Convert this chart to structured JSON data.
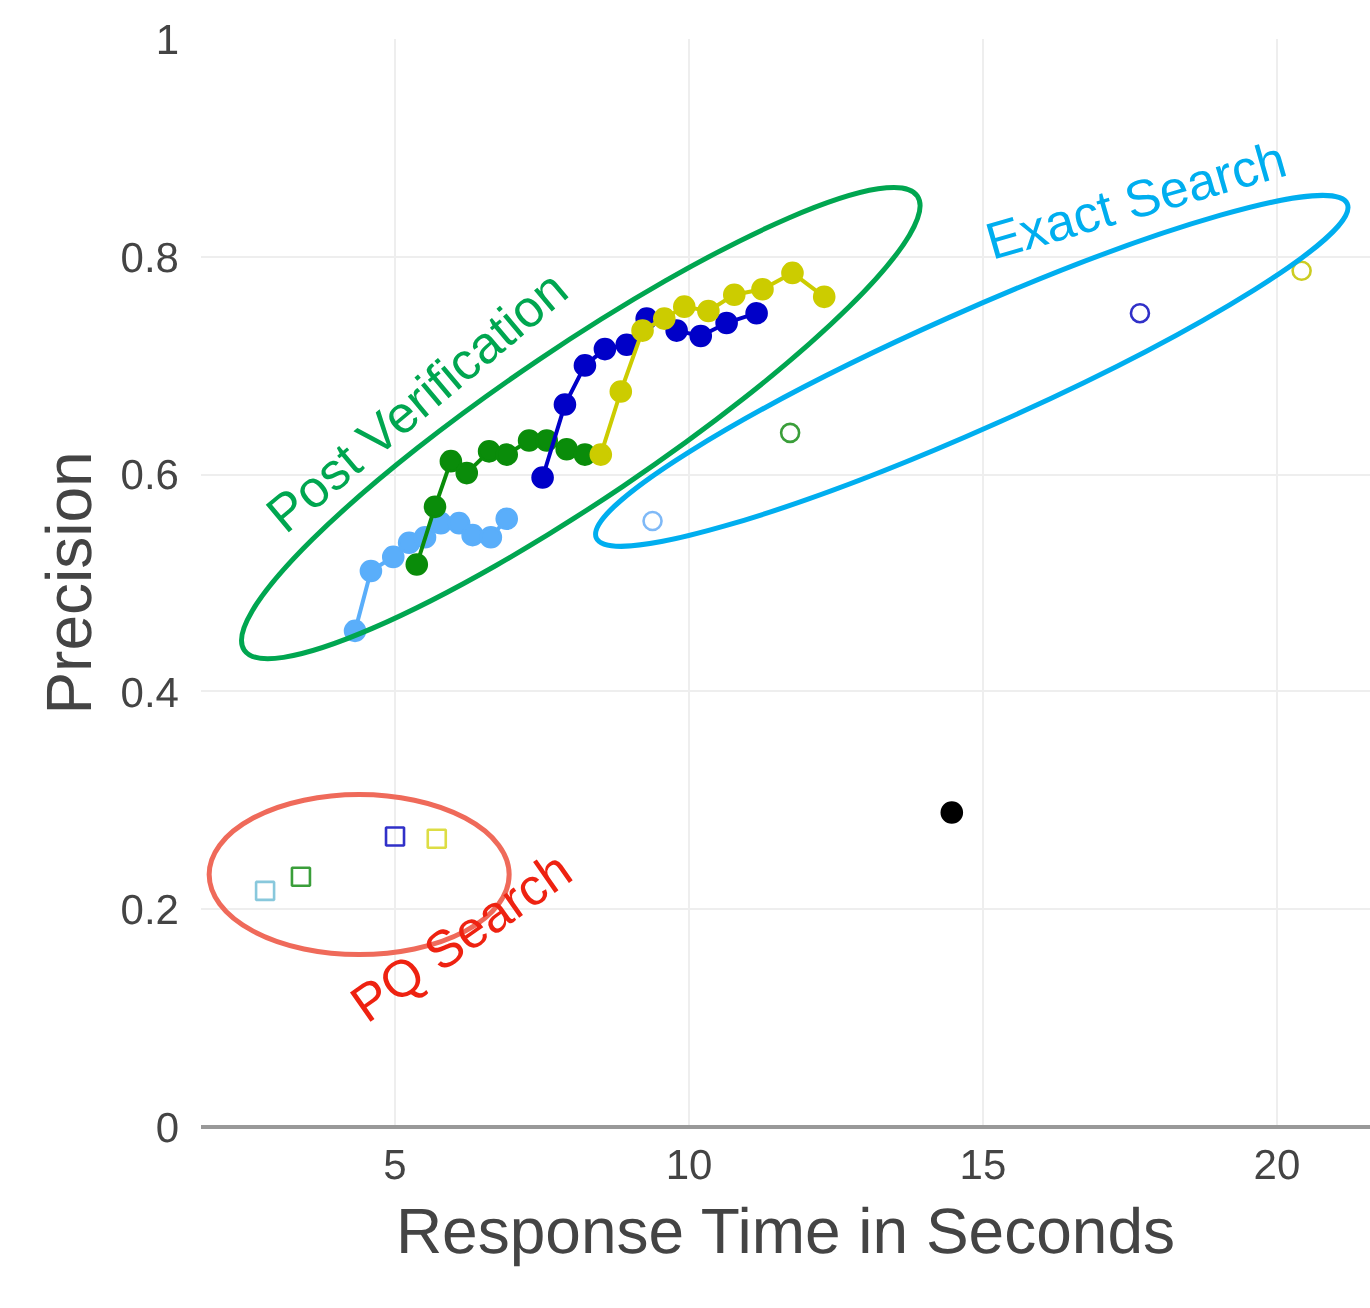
{
  "chart_data": {
    "type": "scatter",
    "xlabel": "Response Time in Seconds",
    "ylabel": "Precision",
    "xlim": [
      1.7,
      21.6
    ],
    "ylim": [
      0,
      1
    ],
    "xticks": [
      5,
      10,
      15,
      20
    ],
    "yticks": [
      0,
      0.2,
      0.4,
      0.6,
      0.8,
      1
    ],
    "grid": true,
    "annotations": [
      "Post Verification",
      "Exact Search",
      "PQ Search"
    ],
    "series": [
      {
        "type": "line",
        "marker": "circle",
        "color": "#5aaefa",
        "x": [
          4.32,
          4.59,
          4.97,
          5.24,
          5.51,
          5.78,
          6.09,
          6.32,
          6.63,
          6.9
        ],
        "values": [
          0.456,
          0.511,
          0.524,
          0.537,
          0.542,
          0.555,
          0.555,
          0.544,
          0.542,
          0.559
        ]
      },
      {
        "type": "line",
        "marker": "circle",
        "color": "#0a8c0a",
        "x": [
          5.37,
          5.68,
          5.95,
          6.22,
          6.6,
          6.9,
          7.28,
          7.58,
          7.92,
          8.23
        ],
        "values": [
          0.517,
          0.57,
          0.612,
          0.601,
          0.621,
          0.618,
          0.631,
          0.631,
          0.623,
          0.618
        ]
      },
      {
        "type": "line",
        "marker": "circle",
        "color": "#0000c8",
        "x": [
          7.51,
          7.89,
          8.23,
          8.57,
          8.94,
          9.28,
          9.79,
          10.2,
          10.64,
          11.15
        ],
        "values": [
          0.597,
          0.664,
          0.7,
          0.715,
          0.719,
          0.743,
          0.732,
          0.727,
          0.739,
          0.748
        ]
      },
      {
        "type": "line",
        "marker": "circle",
        "color": "#cccc00",
        "x": [
          8.5,
          8.84,
          9.21,
          9.58,
          9.92,
          10.33,
          10.77,
          11.25,
          11.76,
          12.3
        ],
        "values": [
          0.618,
          0.676,
          0.732,
          0.743,
          0.754,
          0.75,
          0.765,
          0.77,
          0.785,
          0.763
        ]
      },
      {
        "marker": "circle",
        "color": "#7fb9f7",
        "x": [
          9.38
        ],
        "values": [
          0.557
        ]
      },
      {
        "marker": "circle",
        "color": "#3a9e3a",
        "x": [
          11.72
        ],
        "values": [
          0.638
        ]
      },
      {
        "marker": "circle",
        "color": "#3030c8",
        "x": [
          17.67
        ],
        "values": [
          0.748
        ]
      },
      {
        "marker": "circle",
        "color": "#cccc22",
        "x": [
          20.42
        ],
        "values": [
          0.787
        ]
      },
      {
        "marker": "square",
        "color": "#88c8dc",
        "x": [
          2.79
        ],
        "values": [
          0.217
        ]
      },
      {
        "marker": "square",
        "color": "#3a9e3a",
        "x": [
          3.4
        ],
        "values": [
          0.23
        ]
      },
      {
        "marker": "square",
        "color": "#3030c8",
        "x": [
          5.0
        ],
        "values": [
          0.267
        ]
      },
      {
        "marker": "square",
        "color": "#dddd44",
        "x": [
          5.71
        ],
        "values": [
          0.265
        ]
      },
      {
        "type": "line",
        "marker": "circle",
        "color": "#000000",
        "x": [
          14.47
        ],
        "values": [
          0.289
        ]
      }
    ]
  }
}
